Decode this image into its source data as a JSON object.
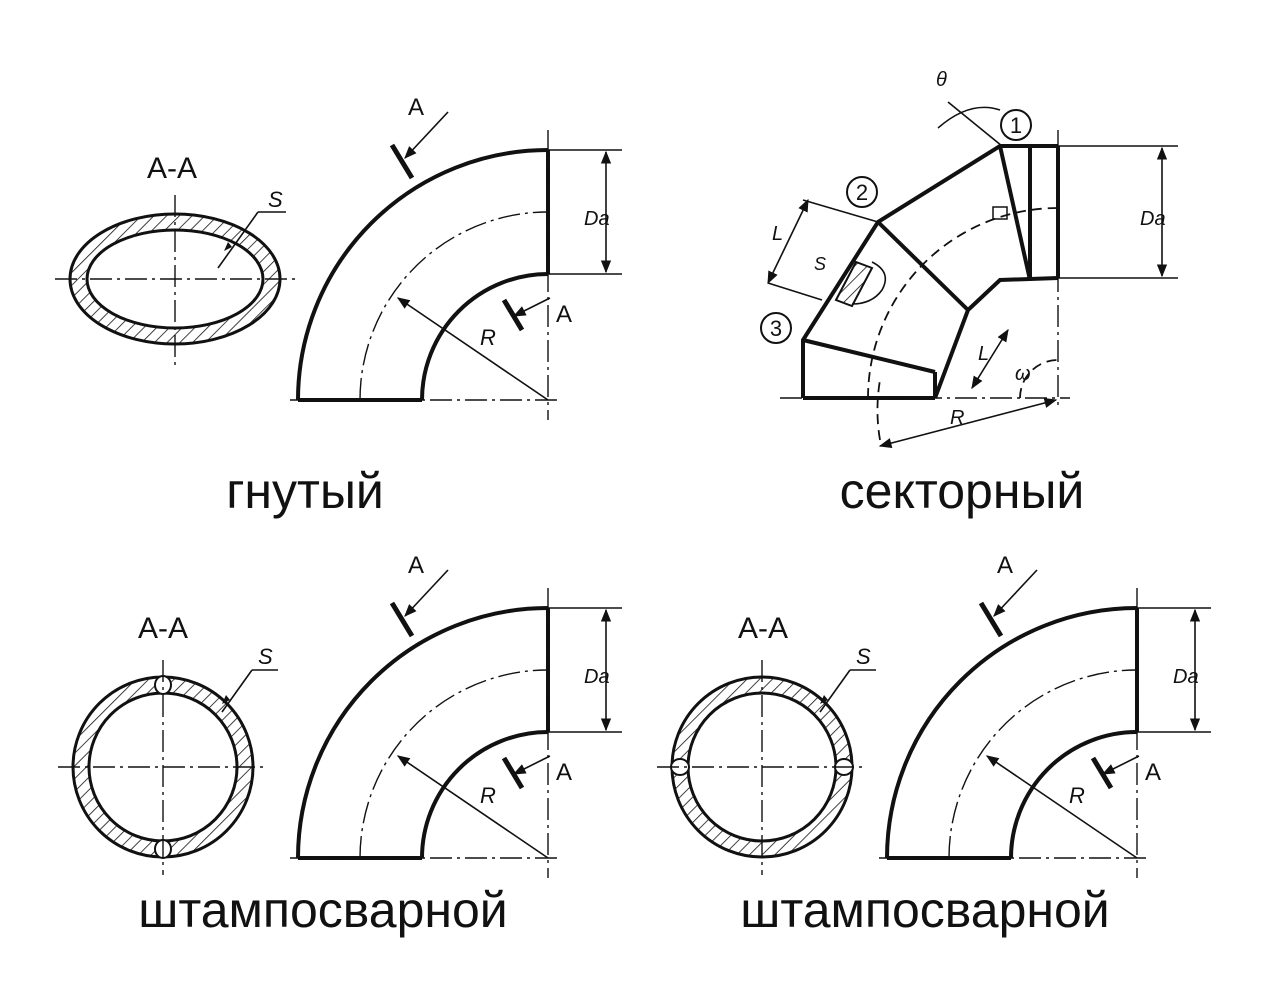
{
  "captions": {
    "bent": "гнутый",
    "sector": "секторный",
    "stamped_left": "штампосварной",
    "stamped_right": "штампосварной"
  },
  "labels": {
    "section": "A-A",
    "cut": "A",
    "thickness": "S",
    "diameter": "Da",
    "radius": "R",
    "length": "L",
    "theta": "θ",
    "omega": "ω",
    "sector_1": "1",
    "sector_2": "2",
    "sector_3": "3"
  }
}
